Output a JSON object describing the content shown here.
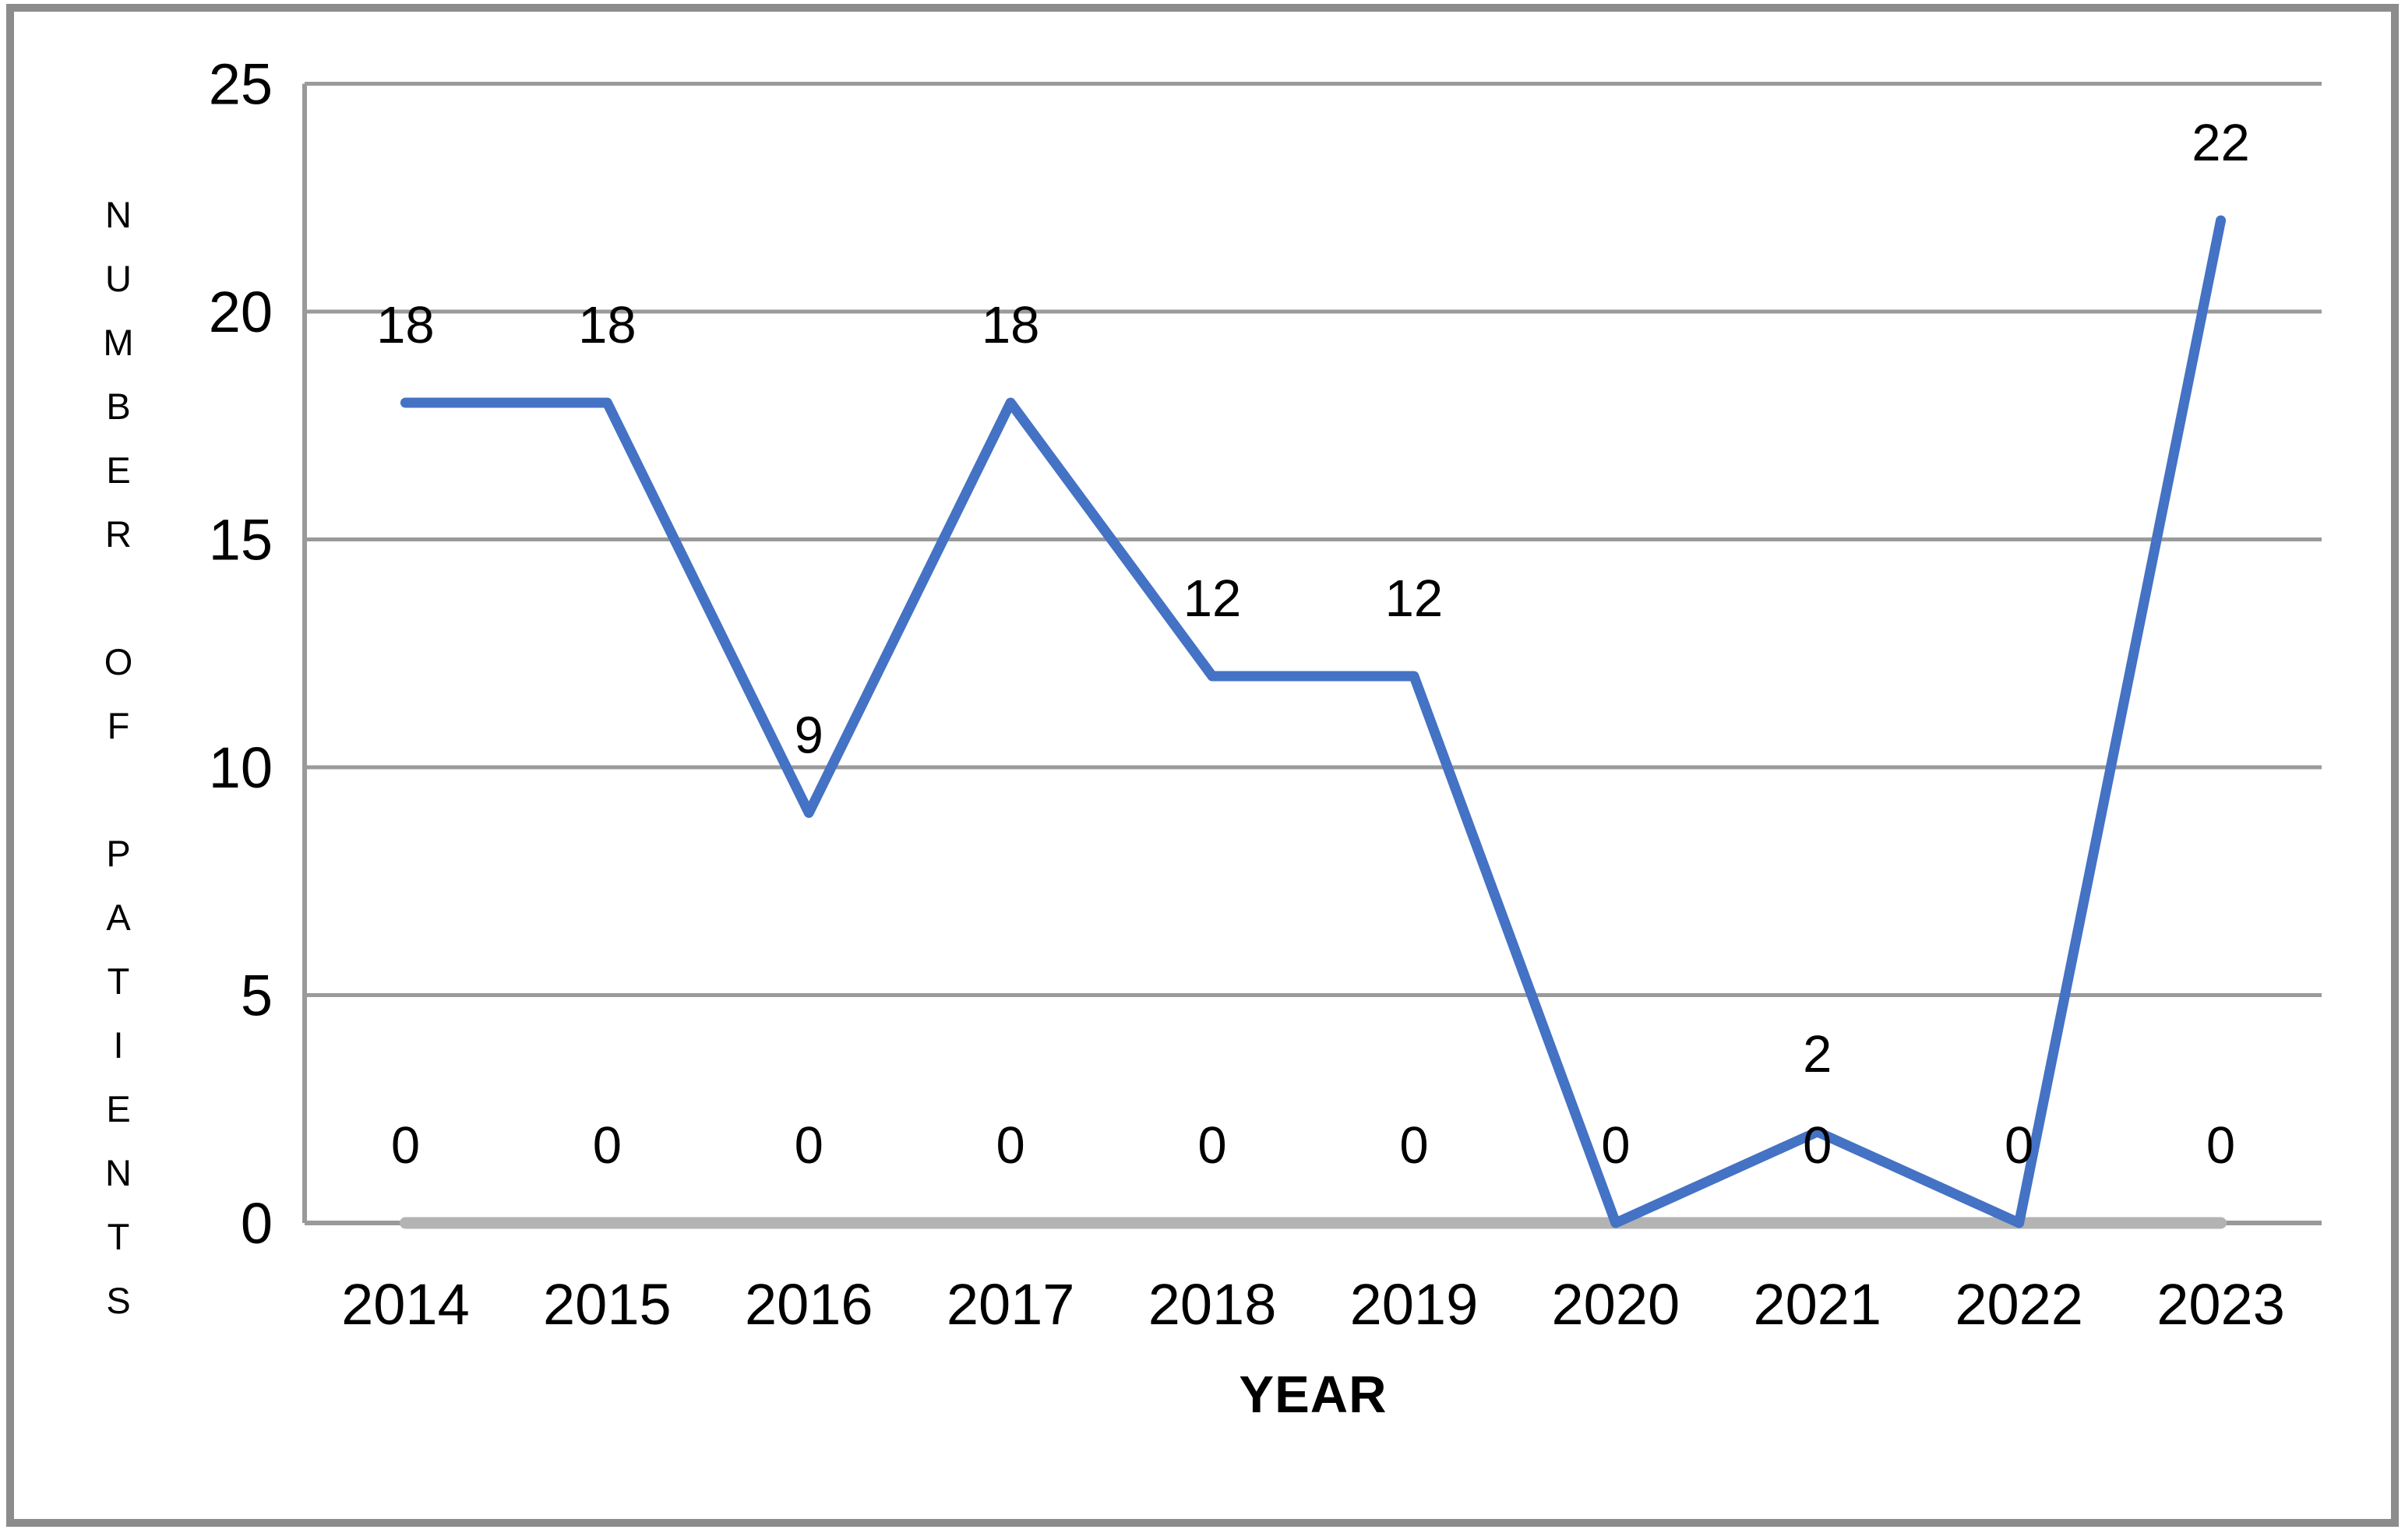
{
  "chart_data": {
    "type": "line",
    "title": "",
    "categories": [
      "2014",
      "2015",
      "2016",
      "2017",
      "2018",
      "2019",
      "2020",
      "2021",
      "2022",
      "2023"
    ],
    "series": [
      {
        "name": "number-of-patients",
        "color": "#4472C4",
        "values": [
          18,
          18,
          9,
          18,
          12,
          12,
          0,
          2,
          0,
          22
        ],
        "labels": [
          "18",
          "18",
          "9",
          "18",
          "12",
          "12",
          null,
          "2",
          null,
          "22"
        ]
      },
      {
        "name": "baseline-zero-series",
        "color": "#B3B3B3",
        "values": [
          0,
          0,
          0,
          0,
          0,
          0,
          0,
          0,
          0,
          0
        ],
        "labels": [
          "0",
          "0",
          "0",
          "0",
          "0",
          "0",
          "0",
          "0",
          "0",
          "0"
        ]
      }
    ],
    "xlabel": "YEAR",
    "ylabel": "NUMBER OF PATIENTS",
    "yticks": [
      0,
      5,
      10,
      15,
      20,
      25
    ],
    "ylim": [
      0,
      25
    ],
    "grid": true,
    "legend": "none"
  },
  "colors": {
    "line_blue": "#4472C4",
    "zero_series_gray": "#B3B3B3",
    "gridline_gray": "#9A9A9A",
    "axis_gray": "#9A9A9A",
    "border_gray": "#8C8C8C",
    "text_black": "#000000"
  }
}
